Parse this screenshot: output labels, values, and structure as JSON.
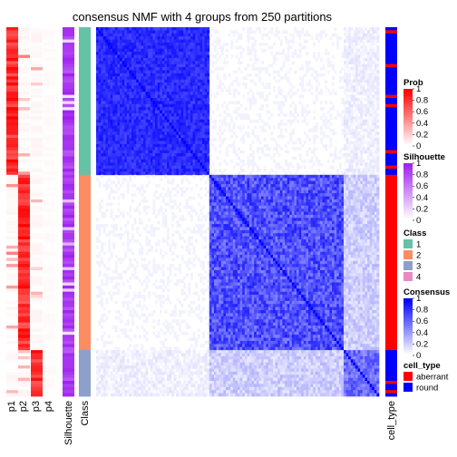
{
  "chart_data": {
    "type": "heatmap",
    "title": "consensus NMF with 4 groups from 250 partitions",
    "n_samples": 120,
    "groups": [
      {
        "class": "1",
        "start": 0,
        "end": 47
      },
      {
        "class": "2",
        "start": 48,
        "end": 104
      },
      {
        "class": "3",
        "start": 105,
        "end": 119
      }
    ],
    "columns_left": [
      "p1",
      "p2",
      "p3",
      "p4",
      "Silhouette",
      "Class"
    ],
    "columns_right": [
      "cell_type"
    ],
    "legends": [
      {
        "title": "Prob",
        "type": "gradient",
        "low": "#ffffff",
        "high": "#ff0000",
        "ticks": [
          "1",
          "0.8",
          "0.6",
          "0.4",
          "0.2",
          "0"
        ]
      },
      {
        "title": "Silhouette",
        "type": "gradient",
        "low": "#ffffff",
        "high": "#a020f0",
        "ticks": [
          "1",
          "0.8",
          "0.6",
          "0.4",
          "0.2",
          "0"
        ]
      },
      {
        "title": "Class",
        "type": "discrete",
        "entries": [
          {
            "label": "1",
            "color": "#66c2a5"
          },
          {
            "label": "2",
            "color": "#fc8d62"
          },
          {
            "label": "3",
            "color": "#8da0cb"
          },
          {
            "label": "4",
            "color": "#e78ac3"
          }
        ]
      },
      {
        "title": "Consensus",
        "type": "gradient",
        "low": "#ffffff",
        "high": "#0000ff",
        "ticks": [
          "1",
          "0.8",
          "0.6",
          "0.4",
          "0.2",
          "0"
        ]
      },
      {
        "title": "cell_type",
        "type": "discrete",
        "entries": [
          {
            "label": "aberrant",
            "color": "#ff0000"
          },
          {
            "label": "round",
            "color": "#0000ff"
          }
        ]
      }
    ]
  }
}
